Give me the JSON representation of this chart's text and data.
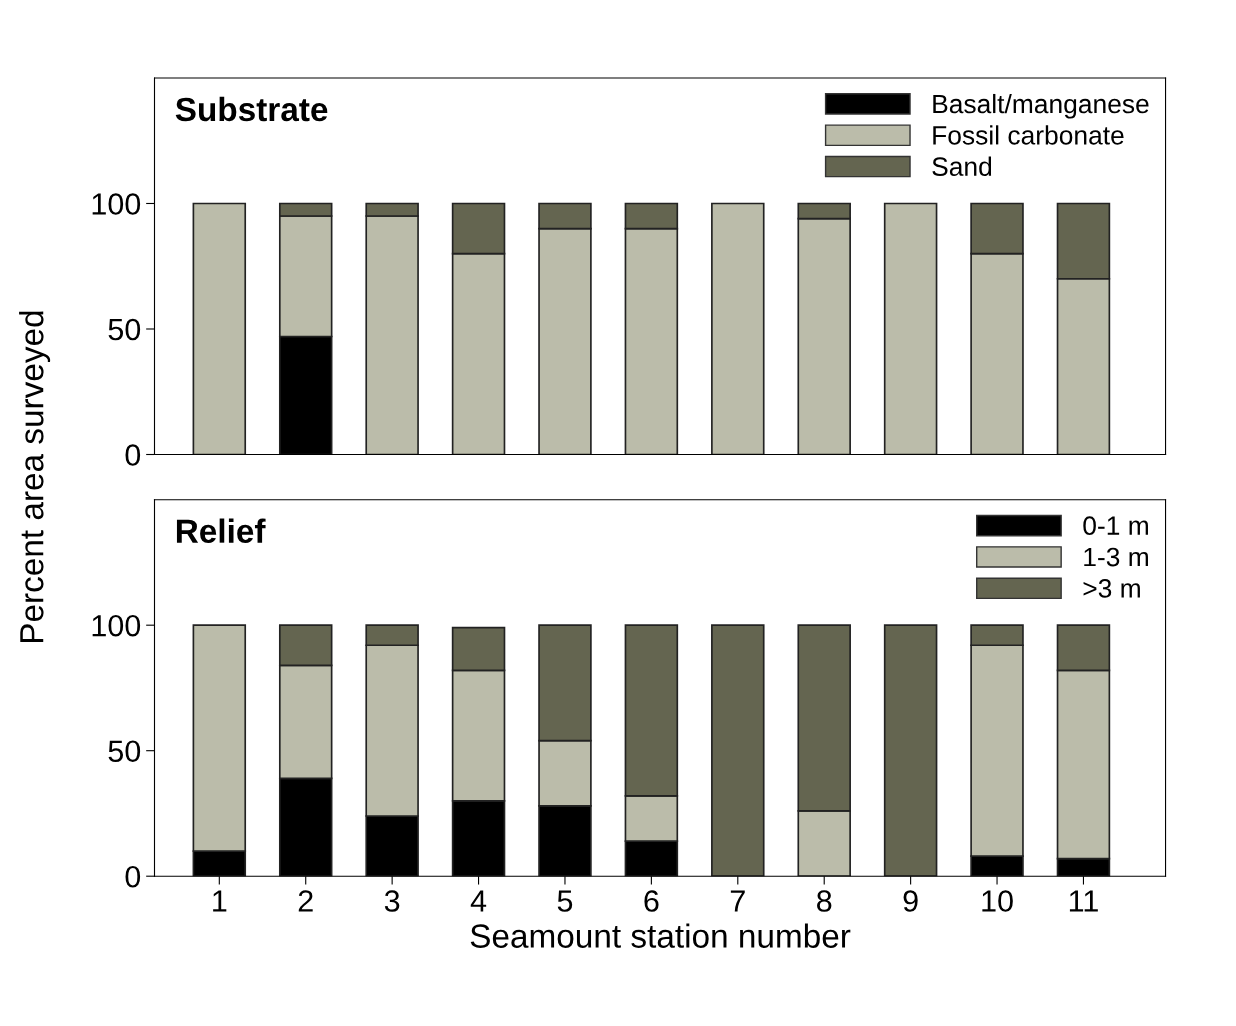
{
  "chart_data": [
    {
      "type": "bar",
      "stacked": true,
      "title": "Substrate",
      "ylabel": "Percent area surveyed",
      "categories": [
        "1",
        "2",
        "3",
        "4",
        "5",
        "6",
        "7",
        "8",
        "9",
        "10",
        "11"
      ],
      "ylim": [
        0,
        150
      ],
      "yticks": [
        0,
        50,
        100
      ],
      "legend": "top right",
      "tick_labels": "y",
      "series": [
        {
          "name": "Basalt/manganese",
          "color": "#000000",
          "values": [
            0,
            47,
            0,
            0,
            0,
            0,
            0,
            0,
            0,
            0,
            0
          ]
        },
        {
          "name": "Fossil carbonate",
          "color": "#bbbcaa",
          "values": [
            100,
            48,
            95,
            80,
            90,
            90,
            100,
            94,
            100,
            80,
            70
          ]
        },
        {
          "name": "Sand",
          "color": "#646550",
          "values": [
            0,
            5,
            5,
            20,
            10,
            10,
            0,
            6,
            0,
            20,
            30
          ]
        }
      ]
    },
    {
      "type": "bar",
      "stacked": true,
      "title": "Relief",
      "xlabel": "Seamount station number",
      "categories": [
        "1",
        "2",
        "3",
        "4",
        "5",
        "6",
        "7",
        "8",
        "9",
        "10",
        "11"
      ],
      "ylim": [
        0,
        150
      ],
      "yticks": [
        0,
        50,
        100
      ],
      "legend": "top right",
      "series": [
        {
          "name": "0-1 m",
          "color": "#000000",
          "values": [
            10,
            39,
            24,
            30,
            28,
            14,
            0,
            0,
            0,
            8,
            7
          ]
        },
        {
          "name": "1-3 m",
          "color": "#bbbcaa",
          "values": [
            90,
            45,
            68,
            52,
            26,
            18,
            0,
            26,
            0,
            84,
            75
          ]
        },
        {
          "name": ">3 m",
          "color": "#646550",
          "values": [
            0,
            16,
            8,
            17,
            46,
            68,
            100,
            74,
            100,
            8,
            18
          ]
        }
      ]
    }
  ]
}
